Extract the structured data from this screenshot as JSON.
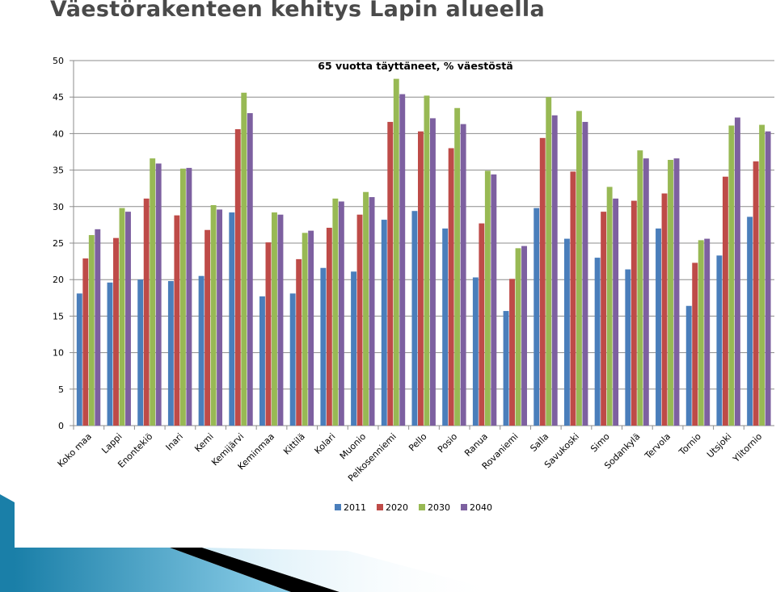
{
  "slide": {
    "title": "Väestörakenteen kehitys Lapin alueella"
  },
  "chart_data": {
    "type": "bar",
    "title": "65 vuotta täyttäneet, % väestöstä",
    "xlabel": "",
    "ylabel": "",
    "ylim": [
      0,
      50
    ],
    "yticks": [
      0,
      5,
      10,
      15,
      20,
      25,
      30,
      35,
      40,
      45,
      50
    ],
    "grid": true,
    "legend_position": "bottom",
    "categories": [
      "Koko maa",
      "Lappi",
      "Enontekiö",
      "Inari",
      "Kemi",
      "Kemijärvi",
      "Keminmaa",
      "Kittilä",
      "Kolari",
      "Muonio",
      "Pelkosenniemi",
      "Pello",
      "Posio",
      "Ranua",
      "Rovaniemi",
      "Salla",
      "Savukoski",
      "Simo",
      "Sodankylä",
      "Tervola",
      "Tornio",
      "Utsjoki",
      "Ylitornio"
    ],
    "series": [
      {
        "name": "2011",
        "color": "#4a7ebb",
        "values": [
          18.1,
          19.6,
          20.0,
          19.8,
          20.5,
          29.2,
          17.7,
          18.1,
          21.6,
          21.1,
          28.2,
          29.4,
          27.0,
          20.3,
          15.7,
          29.8,
          25.6,
          23.0,
          21.4,
          27.0,
          16.4,
          23.3,
          28.6
        ]
      },
      {
        "name": "2020",
        "color": "#be4b48",
        "values": [
          22.9,
          25.7,
          31.1,
          28.8,
          26.8,
          40.6,
          25.1,
          22.8,
          27.1,
          28.9,
          41.6,
          40.3,
          38.0,
          27.7,
          20.1,
          39.4,
          34.8,
          29.3,
          30.8,
          31.8,
          22.3,
          34.1,
          36.2
        ]
      },
      {
        "name": "2030",
        "color": "#98b954",
        "values": [
          26.1,
          29.8,
          36.6,
          35.2,
          30.2,
          45.6,
          29.2,
          26.4,
          31.1,
          32.0,
          47.5,
          45.2,
          43.5,
          34.9,
          24.3,
          45.0,
          43.1,
          32.7,
          37.7,
          36.4,
          25.4,
          41.1,
          41.2
        ]
      },
      {
        "name": "2040",
        "color": "#7d60a0",
        "values": [
          26.9,
          29.3,
          35.9,
          35.3,
          29.6,
          42.8,
          28.9,
          26.7,
          30.7,
          31.3,
          45.4,
          42.1,
          41.3,
          34.4,
          24.6,
          42.5,
          41.6,
          31.1,
          36.6,
          36.6,
          25.6,
          42.2,
          40.3
        ]
      }
    ]
  }
}
